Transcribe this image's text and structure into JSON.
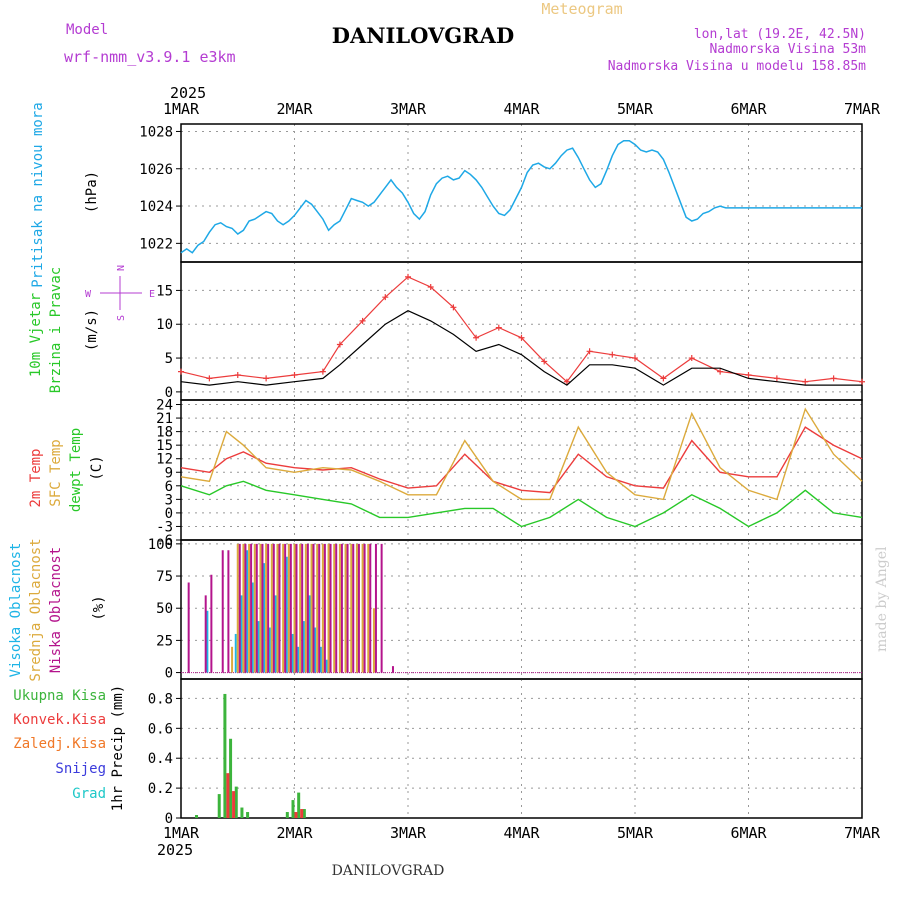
{
  "header": {
    "model_label": "Model",
    "model_name": "wrf-nmm_v3.9.1 e3km",
    "station_title": "DANILOVGRAD",
    "chart_kind": "Meteogram",
    "lonlat": "lon,lat (19.2E, 42.5N)",
    "elevation": "Nadmorska Visina 53m",
    "model_elevation": "Nadmorska Visina u modelu 158.85m",
    "year_top": "2025",
    "year_bottom": "2025",
    "footer_title": "DANILOVGRAD",
    "credit": "made by Angel"
  },
  "colors": {
    "pressure": "#1ea8e6",
    "temp2m": "#ec3c3c",
    "sfc_temp": "#dcaa3c",
    "dewpoint": "#28c828",
    "wind_speed": "#000000",
    "wind_gust": "#ec3c3c",
    "cloud_high": "#1eb4e6",
    "cloud_mid": "#dcaa3c",
    "cloud_low": "#b4148c",
    "precip_total": "#3cb43c",
    "precip_conv": "#ec3c3c",
    "precip_frozen": "#f07828",
    "snow": "#3c3cdc",
    "hail": "#1ec8c8",
    "label_purple": "#b43cd2",
    "title_tan": "#ecc882"
  },
  "chart_data": [
    {
      "type": "line",
      "title": "Pritisak na nivou mora",
      "ylabel": "(hPa)",
      "ylim": [
        1021,
        1028.4
      ],
      "yticks": [
        1022,
        1024,
        1026,
        1028
      ],
      "x_days": [
        0,
        0.05,
        0.1,
        0.15,
        0.2,
        0.25,
        0.3,
        0.35,
        0.4,
        0.45,
        0.5,
        0.55,
        0.6,
        0.65,
        0.7,
        0.75,
        0.8,
        0.85,
        0.9,
        0.95,
        1.0,
        1.05,
        1.1,
        1.15,
        1.2,
        1.25,
        1.3,
        1.35,
        1.4,
        1.45,
        1.5,
        1.55,
        1.6,
        1.65,
        1.7,
        1.75,
        1.8,
        1.85,
        1.9,
        1.95,
        2.0,
        2.05,
        2.1,
        2.15,
        2.2,
        2.25,
        2.3,
        2.35,
        2.4,
        2.45,
        2.5,
        2.55,
        2.6,
        2.65,
        2.7,
        2.75,
        2.8,
        2.85,
        2.9,
        2.95,
        3.0,
        3.05,
        3.1,
        3.15,
        3.2,
        3.25,
        3.3,
        3.35,
        3.4,
        3.45,
        3.5,
        3.55,
        3.6,
        3.65,
        3.7,
        3.75,
        3.8,
        3.85,
        3.9,
        3.95,
        4.0,
        4.05,
        4.1,
        4.15,
        4.2,
        4.25,
        4.3,
        4.35,
        4.4,
        4.45,
        4.5,
        4.55,
        4.6,
        4.65,
        4.7,
        4.75,
        4.8,
        4.85,
        4.9,
        4.95,
        5.0,
        5.05,
        5.1,
        5.15,
        5.2,
        5.25,
        5.3,
        5.35,
        5.4,
        5.45,
        5.5,
        5.55,
        5.6,
        5.65,
        5.7,
        5.75,
        5.8,
        5.85,
        5.9,
        5.95,
        6.0
      ],
      "values": [
        1021.5,
        1021.7,
        1021.5,
        1021.9,
        1022.1,
        1022.6,
        1023.0,
        1023.1,
        1022.9,
        1022.8,
        1022.5,
        1022.7,
        1023.2,
        1023.3,
        1023.5,
        1023.7,
        1023.6,
        1023.2,
        1023.0,
        1023.2,
        1023.5,
        1023.9,
        1024.3,
        1024.1,
        1023.7,
        1023.3,
        1022.7,
        1023.0,
        1023.2,
        1023.8,
        1024.4,
        1024.3,
        1024.2,
        1024.0,
        1024.2,
        1024.6,
        1025.0,
        1025.4,
        1025.0,
        1024.7,
        1024.2,
        1023.6,
        1023.3,
        1023.7,
        1024.6,
        1025.2,
        1025.5,
        1025.6,
        1025.4,
        1025.5,
        1025.9,
        1025.7,
        1025.4,
        1025.0,
        1024.5,
        1024.0,
        1023.6,
        1023.5,
        1023.8,
        1024.4,
        1025.0,
        1025.8,
        1026.2,
        1026.3,
        1026.1,
        1026.0,
        1026.3,
        1026.7,
        1027.0,
        1027.1,
        1026.6,
        1026.0,
        1025.4,
        1025.0,
        1025.2,
        1025.9,
        1026.7,
        1027.3,
        1027.5,
        1027.5,
        1027.3,
        1027.0,
        1026.9,
        1027.0,
        1026.9,
        1026.5,
        1025.8,
        1025.0,
        1024.2,
        1023.4,
        1023.2,
        1023.3,
        1023.6,
        1023.7,
        1023.9,
        1024.0,
        1023.9,
        1023.9,
        1023.9,
        1023.9,
        1023.9,
        1023.9,
        1023.9,
        1023.9,
        1023.9,
        1023.9,
        1023.9,
        1023.9,
        1023.9,
        1023.9,
        1023.9,
        1023.9,
        1023.9,
        1023.9,
        1023.9,
        1023.9,
        1023.9,
        1023.9,
        1023.9,
        1023.9,
        1023.9
      ]
    },
    {
      "type": "line",
      "title": "10m Vjetar",
      "title2": "Brzina i Pravac",
      "ylabel": "(m/s)",
      "ylim": [
        -1.2,
        19.2
      ],
      "yticks": [
        0,
        5,
        10,
        15
      ],
      "compass": {
        "n": "N",
        "s": "S",
        "e": "E",
        "w": "W"
      },
      "series": [
        {
          "name": "wind speed",
          "x_days": [
            0,
            0.25,
            0.5,
            0.75,
            1.0,
            1.25,
            1.4,
            1.6,
            1.8,
            2.0,
            2.2,
            2.4,
            2.6,
            2.8,
            3.0,
            3.2,
            3.4,
            3.6,
            3.8,
            4.0,
            4.25,
            4.5,
            4.75,
            5.0,
            5.25,
            5.5,
            5.75,
            6.0
          ],
          "values": [
            1.5,
            1.0,
            1.5,
            1.0,
            1.5,
            2.0,
            4.0,
            7.0,
            10.0,
            12.0,
            10.5,
            8.5,
            6.0,
            7.0,
            5.5,
            3.0,
            1.0,
            4.0,
            4.0,
            3.5,
            1.0,
            3.5,
            3.5,
            2.0,
            1.5,
            1.0,
            1.0,
            1.0
          ]
        },
        {
          "name": "wind gust",
          "x_days": [
            0,
            0.25,
            0.5,
            0.75,
            1.0,
            1.25,
            1.4,
            1.6,
            1.8,
            2.0,
            2.2,
            2.4,
            2.6,
            2.8,
            3.0,
            3.2,
            3.4,
            3.6,
            3.8,
            4.0,
            4.25,
            4.5,
            4.75,
            5.0,
            5.25,
            5.5,
            5.75,
            6.0
          ],
          "values": [
            3.0,
            2.0,
            2.5,
            2.0,
            2.5,
            3.0,
            7.0,
            10.5,
            14.0,
            17.0,
            15.5,
            12.5,
            8.0,
            9.5,
            8.0,
            4.5,
            1.5,
            6.0,
            5.5,
            5.0,
            2.0,
            5.0,
            3.0,
            2.5,
            2.0,
            1.5,
            2.0,
            1.5
          ]
        }
      ]
    },
    {
      "type": "line",
      "title": "2m Temp",
      "title2": "SFC Temp",
      "title3": "dewpt Temp",
      "ylabel": "(C)",
      "ylim": [
        -6,
        25
      ],
      "yticks": [
        -6,
        -3,
        0,
        3,
        6,
        9,
        12,
        15,
        18,
        21,
        24
      ],
      "series": [
        {
          "name": "2m Temp",
          "x_days": [
            0,
            0.25,
            0.4,
            0.55,
            0.75,
            1.0,
            1.25,
            1.5,
            1.75,
            2.0,
            2.25,
            2.5,
            2.75,
            3.0,
            3.25,
            3.5,
            3.75,
            4.0,
            4.25,
            4.5,
            4.75,
            5.0,
            5.25,
            5.5,
            5.75,
            6.0
          ],
          "values": [
            10,
            9,
            12,
            13.5,
            11,
            10,
            9.5,
            10,
            7.5,
            5.5,
            6,
            13,
            7,
            5,
            4.5,
            13,
            8,
            6,
            5.5,
            16,
            9,
            8,
            8,
            19,
            15,
            12
          ]
        },
        {
          "name": "SFC Temp",
          "x_days": [
            0,
            0.25,
            0.4,
            0.55,
            0.75,
            1.0,
            1.25,
            1.5,
            1.75,
            2.0,
            2.25,
            2.5,
            2.75,
            3.0,
            3.25,
            3.5,
            3.75,
            4.0,
            4.25,
            4.5,
            4.75,
            5.0,
            5.25,
            5.5,
            5.75,
            6.0
          ],
          "values": [
            8,
            7,
            18,
            15,
            10,
            9,
            10,
            9.5,
            7,
            4,
            4,
            16,
            7,
            3,
            3,
            19,
            9,
            4,
            3,
            22,
            10,
            5,
            3,
            23,
            13,
            7
          ]
        },
        {
          "name": "dewpt Temp",
          "x_days": [
            0,
            0.25,
            0.4,
            0.55,
            0.75,
            1.0,
            1.25,
            1.5,
            1.75,
            2.0,
            2.25,
            2.5,
            2.75,
            3.0,
            3.25,
            3.5,
            3.75,
            4.0,
            4.25,
            4.5,
            4.75,
            5.0,
            5.25,
            5.5,
            5.75,
            6.0
          ],
          "values": [
            6,
            4,
            6,
            7,
            5,
            4,
            3,
            2,
            -1,
            -1,
            0,
            1,
            1,
            -3,
            -1,
            3,
            -1,
            -3,
            0,
            4,
            1,
            -3,
            0,
            5,
            0,
            -1
          ]
        }
      ]
    },
    {
      "type": "bar",
      "title": "Visoka Oblacnost",
      "title2": "Srednja Oblacnost",
      "title3": "Niska Oblacnost",
      "ylabel": "(%)",
      "ylim": [
        -5,
        103
      ],
      "yticks": [
        0,
        25,
        50,
        75,
        100
      ],
      "series": [
        {
          "name": "Visoka Oblacnost",
          "x_days": [
            0.25,
            0.5,
            0.55,
            0.6,
            0.65,
            0.7,
            0.75,
            0.8,
            0.85,
            0.95,
            1.0,
            1.05,
            1.1,
            1.15,
            1.2,
            1.25,
            1.3
          ],
          "values": [
            48,
            30,
            60,
            95,
            70,
            40,
            85,
            35,
            60,
            90,
            30,
            20,
            40,
            60,
            35,
            20,
            10
          ]
        },
        {
          "name": "Srednja Oblacnost",
          "x_days": [
            0.45,
            0.5,
            0.55,
            0.6,
            0.65,
            0.7,
            0.75,
            0.8,
            0.85,
            0.9,
            0.95,
            1.0,
            1.05,
            1.1,
            1.15,
            1.2,
            1.25,
            1.3,
            1.35,
            1.4,
            1.45,
            1.5,
            1.55,
            1.6,
            1.65,
            1.7
          ],
          "values": [
            20,
            100,
            100,
            100,
            100,
            100,
            100,
            100,
            100,
            100,
            100,
            100,
            100,
            100,
            100,
            100,
            100,
            100,
            100,
            100,
            100,
            100,
            100,
            100,
            100,
            50
          ]
        },
        {
          "name": "Niska Oblacnost",
          "x_days": [
            0.05,
            0.2,
            0.25,
            0.35,
            0.4,
            0.5,
            0.55,
            0.6,
            0.65,
            0.7,
            0.75,
            0.8,
            0.85,
            0.9,
            0.95,
            1.0,
            1.05,
            1.1,
            1.15,
            1.2,
            1.25,
            1.3,
            1.35,
            1.4,
            1.45,
            1.5,
            1.55,
            1.6,
            1.65,
            1.7,
            1.75,
            1.85
          ],
          "values": [
            70,
            60,
            76,
            95,
            95,
            100,
            100,
            100,
            100,
            100,
            100,
            100,
            100,
            100,
            100,
            100,
            100,
            100,
            100,
            100,
            100,
            100,
            100,
            100,
            100,
            100,
            100,
            100,
            100,
            100,
            100,
            5
          ]
        }
      ]
    },
    {
      "type": "bar",
      "title": "Ukupna Kisa",
      "title2": "Konvek.Kisa",
      "title3": "Zaledj.Kisa",
      "title4": "Snijeg",
      "title5": "Grad",
      "ylabel": "1hr Precip (mm)",
      "ylim": [
        0,
        0.93
      ],
      "yticks": [
        0,
        0.2,
        0.4,
        0.6,
        0.8
      ],
      "series": [
        {
          "name": "Ukupna Kisa",
          "x_days": [
            0.15,
            0.35,
            0.4,
            0.45,
            0.5,
            0.55,
            0.6,
            0.95,
            1.0,
            1.05,
            1.1
          ],
          "values": [
            0.02,
            0.16,
            0.83,
            0.53,
            0.21,
            0.07,
            0.04,
            0.04,
            0.12,
            0.17,
            0.06
          ]
        },
        {
          "name": "Konvek.Kisa",
          "x_days": [
            0.4,
            0.45,
            1.0,
            1.05
          ],
          "values": [
            0.3,
            0.18,
            0.04,
            0.06
          ]
        }
      ]
    }
  ],
  "time_axis": {
    "days": 6,
    "day_labels": [
      "1MAR",
      "2MAR",
      "3MAR",
      "4MAR",
      "5MAR",
      "6MAR",
      "7MAR"
    ]
  }
}
